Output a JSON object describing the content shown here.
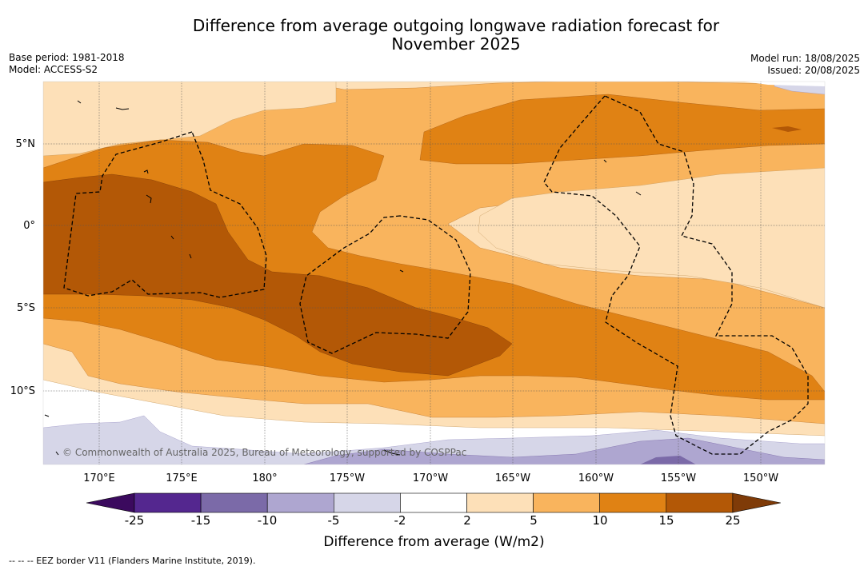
{
  "title_line1": "Difference from average outgoing longwave radiation forecast for",
  "title_line2": "November 2025",
  "base_period": "Base period: 1981-2018",
  "model": "Model: ACCESS-S2",
  "model_run": "Model run: 18/08/2025",
  "issued": "Issued: 20/08/2025",
  "copyright": "© Commonwealth of Australia 2025, Bureau of Meteorology, supported by COSPPac",
  "lat_labels": [
    "5°N",
    "0°",
    "5°S",
    "10°S"
  ],
  "lon_labels": [
    "170°E",
    "175°E",
    "180°",
    "175°W",
    "170°W",
    "165°W",
    "160°W",
    "155°W",
    "150°W"
  ],
  "colorbar": {
    "ticks": [
      "-25",
      "-15",
      "-10",
      "-5",
      "-2",
      "2",
      "5",
      "10",
      "15",
      "25"
    ],
    "colors": [
      "#3b0a5e",
      "#54278f",
      "#7b6aa8",
      "#aea6d0",
      "#d6d6e8",
      "#ffffff",
      "#fde0b8",
      "#f9b45d",
      "#e08214",
      "#b35806",
      "#7f3b08"
    ],
    "label": "Difference from average (W/m2)"
  },
  "legend_note": "--  --  -- EEZ border V11 (Flanders Marine Institute, 2019)."
}
